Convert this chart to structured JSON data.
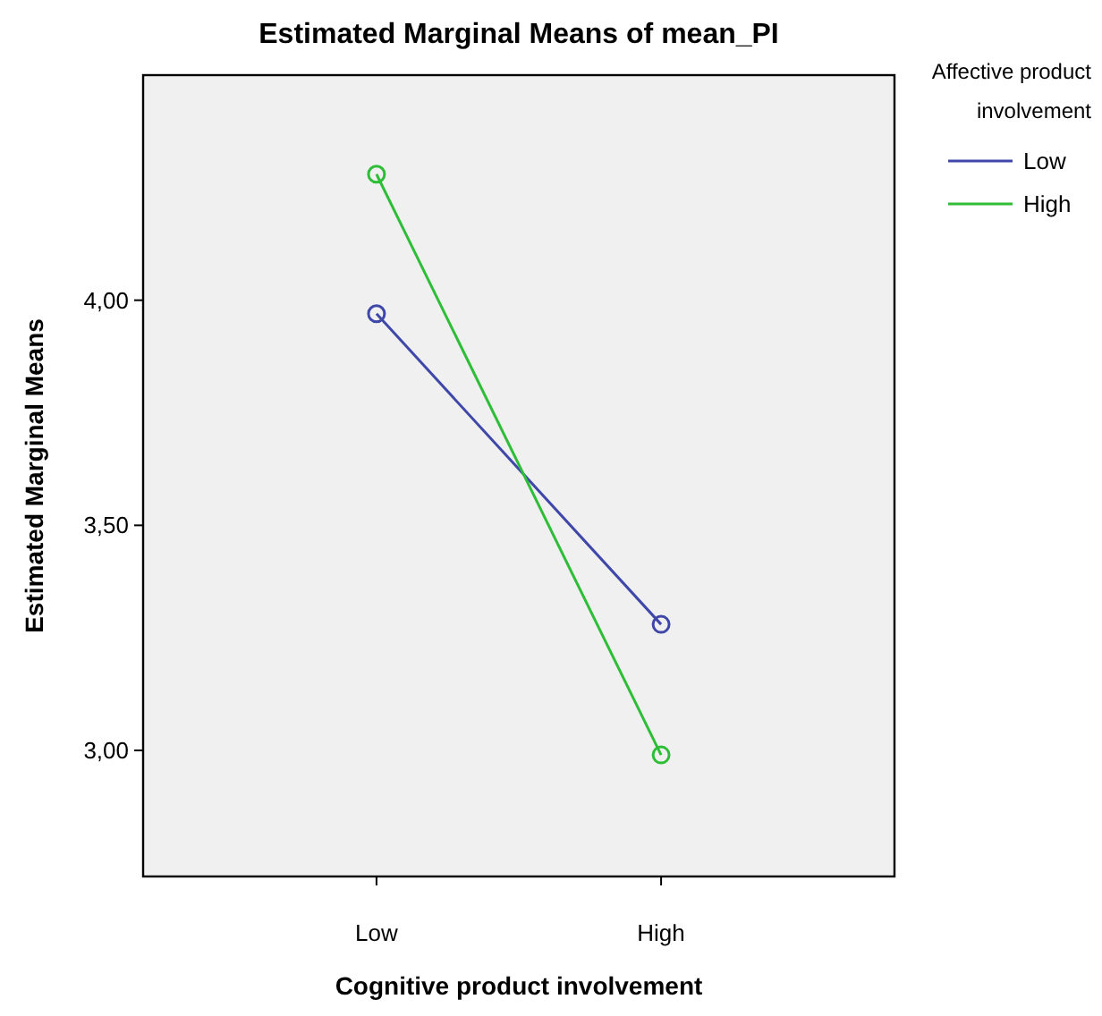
{
  "chart_data": {
    "type": "line",
    "title": "Estimated Marginal Means of mean_PI",
    "xlabel": "Cognitive product involvement",
    "ylabel": "Estimated Marginal Means",
    "legend_title": "Affective product involvement",
    "categories": [
      "Low",
      "High"
    ],
    "series": [
      {
        "name": "Low",
        "color": "#3f48a8",
        "values": [
          3.97,
          3.28
        ]
      },
      {
        "name": "High",
        "color": "#2ebd36",
        "values": [
          4.28,
          2.99
        ]
      }
    ],
    "ylim": [
      2.72,
      4.5
    ],
    "yticks": [
      {
        "value": 3,
        "label": "3,00"
      },
      {
        "value": 3.5,
        "label": "3,50"
      },
      {
        "value": 4,
        "label": "4,00"
      }
    ],
    "grid": false,
    "legend": "top right",
    "marker": "circle",
    "line_style": "solid"
  }
}
